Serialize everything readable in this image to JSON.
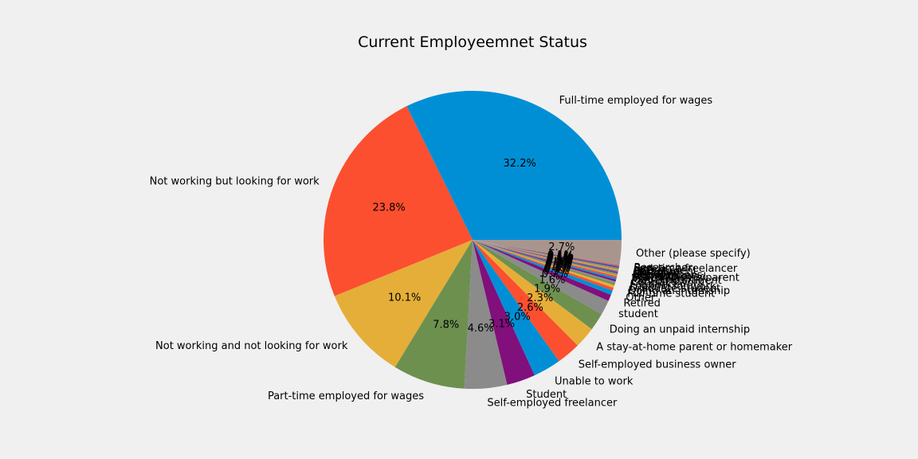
{
  "chart_data": {
    "type": "pie",
    "title": "Current Employeemnet Status",
    "start_angle_deg": 0,
    "direction": "counterclockwise",
    "slices": [
      {
        "label": "Full-time employed for wages",
        "value": 32.2,
        "pct_label": "32.2%",
        "color": "#008fd5"
      },
      {
        "label": "Not working but looking for work",
        "value": 23.8,
        "pct_label": "23.8%",
        "color": "#fc4f30"
      },
      {
        "label": "Not working and not looking for work",
        "value": 10.1,
        "pct_label": "10.1%",
        "color": "#e5ae38"
      },
      {
        "label": "Part-time employed for wages",
        "value": 7.8,
        "pct_label": "7.8%",
        "color": "#6d904f"
      },
      {
        "label": "Self-employed freelancer",
        "value": 4.6,
        "pct_label": "4.6%",
        "color": "#8b8b8b"
      },
      {
        "label": "Student",
        "value": 3.1,
        "pct_label": "3.1%",
        "color": "#810f7c"
      },
      {
        "label": "Unable to work",
        "value": 3.0,
        "pct_label": "3.0%",
        "color": "#008fd5"
      },
      {
        "label": "Self-employed business owner",
        "value": 2.6,
        "pct_label": "2.6%",
        "color": "#fc4f30"
      },
      {
        "label": "A stay-at-home parent or homemaker",
        "value": 2.3,
        "pct_label": "2.3%",
        "color": "#e5ae38"
      },
      {
        "label": "Doing an unpaid internship",
        "value": 1.9,
        "pct_label": "1.9%",
        "color": "#6d904f"
      },
      {
        "label": "student",
        "value": 1.6,
        "pct_label": "1.6%",
        "color": "#8b8b8b"
      },
      {
        "label": "Retired",
        "value": 0.7,
        "pct_label": "0.7%",
        "color": "#810f7c"
      },
      {
        "label": "Other",
        "value": 0.5,
        "pct_label": "0.5%",
        "color": "#008fd5"
      },
      {
        "label": "Full-time student",
        "value": 0.3,
        "pct_label": "0.3%",
        "color": "#fc4f30"
      },
      {
        "label": "Doing an internship",
        "value": 0.3,
        "pct_label": "0.3%",
        "color": "#e5ae38"
      },
      {
        "label": "Graduate student",
        "value": 0.2,
        "pct_label": "0.2%",
        "color": "#6d904f"
      },
      {
        "label": "Looking for work",
        "value": 0.2,
        "pct_label": "0.2%",
        "color": "#8b8b8b"
      },
      {
        "label": "Freelancer",
        "value": 0.2,
        "pct_label": "0.2%",
        "color": "#810f7c"
      },
      {
        "label": "Contract work",
        "value": 0.2,
        "pct_label": "0.2%",
        "color": "#008fd5"
      },
      {
        "label": "Part-time student",
        "value": 0.2,
        "pct_label": "0.2%",
        "color": "#fc4f30"
      },
      {
        "label": "Volunteer",
        "value": 0.1,
        "pct_label": "0.1%",
        "color": "#e5ae38"
      },
      {
        "label": "Stay-at-home parent",
        "value": 0.1,
        "pct_label": "0.1%",
        "color": "#6d904f"
      },
      {
        "label": "Self-employed",
        "value": 0.1,
        "pct_label": "0.1%",
        "color": "#8b8b8b"
      },
      {
        "label": "Homemaker",
        "value": 0.1,
        "pct_label": "0.1%",
        "color": "#810f7c"
      },
      {
        "label": "Between jobs",
        "value": 0.1,
        "pct_label": "0.1%",
        "color": "#008fd5"
      },
      {
        "label": "On leave",
        "value": 0.1,
        "pct_label": "0.1%",
        "color": "#fc4f30"
      },
      {
        "label": "Military",
        "value": 0.1,
        "pct_label": "0.1%",
        "color": "#e5ae38"
      },
      {
        "label": "Caregiver",
        "value": 0.1,
        "pct_label": "0.1%",
        "color": "#6d904f"
      },
      {
        "label": "PhD student",
        "value": 0.1,
        "pct_label": "0.1%",
        "color": "#8b8b8b"
      },
      {
        "label": "Intern",
        "value": 0.1,
        "pct_label": "0.1%",
        "color": "#810f7c"
      },
      {
        "label": "Part-time freelancer",
        "value": 0.1,
        "pct_label": "0.1%",
        "color": "#008fd5"
      },
      {
        "label": "Researcher",
        "value": 0.1,
        "pct_label": "0.1%",
        "color": "#fc4f30"
      },
      {
        "label": "Other (please specify)",
        "value": 2.7,
        "pct_label": "2.7%",
        "color": "#a8968e"
      }
    ]
  }
}
